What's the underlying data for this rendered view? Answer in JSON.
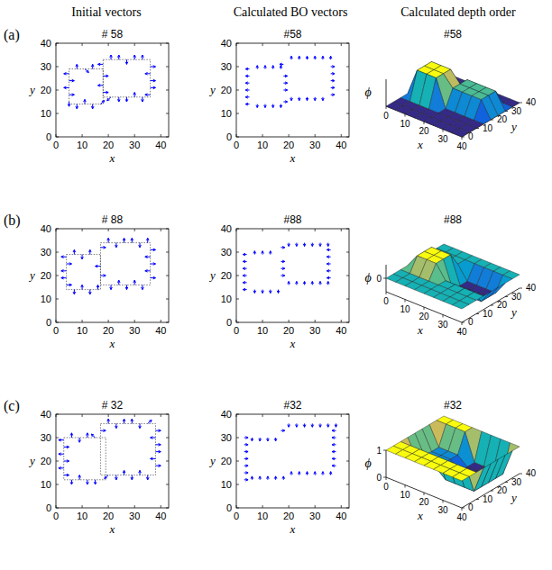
{
  "column_titles": [
    "Initial vectors",
    "Calculated BO vectors",
    "Calculated depth order"
  ],
  "row_labels": [
    "(a)",
    "(b)",
    "(c)"
  ],
  "chart_data": [
    {
      "type": "quiver",
      "title": "# 58",
      "color": "#0000ff",
      "x_label": "x",
      "y_label": "y",
      "xlim": [
        0,
        43
      ],
      "ylim": [
        0,
        40
      ],
      "xticks": [
        0,
        10,
        20,
        30,
        40
      ],
      "yticks": [
        0,
        10,
        20,
        30,
        40
      ],
      "rectangles": [
        [
          5,
          14,
          18,
          29
        ],
        [
          18,
          17,
          36,
          33
        ]
      ],
      "x": [
        5,
        5,
        5,
        5,
        5,
        8,
        11,
        14,
        17,
        8,
        11,
        14,
        18,
        21,
        24,
        27,
        30,
        33,
        36,
        36,
        36,
        36,
        36,
        33,
        30,
        27,
        24,
        21,
        18,
        18,
        18
      ],
      "y": [
        27,
        24,
        21,
        18,
        15,
        14,
        14,
        14,
        14,
        29,
        29,
        29,
        31,
        33,
        33,
        33,
        33,
        33,
        30,
        27,
        24,
        21,
        18,
        17,
        17,
        17,
        17,
        17,
        26,
        22,
        19
      ],
      "u": [
        -2,
        2,
        -2,
        2,
        0,
        0,
        0,
        0,
        1.5,
        0,
        1.5,
        0,
        -2,
        0,
        0,
        0,
        0,
        0,
        2,
        -2,
        2,
        2,
        -2,
        0,
        0,
        0,
        0,
        -1.5,
        2,
        -2,
        2
      ],
      "v": [
        0,
        0,
        0,
        0,
        -2,
        -2,
        2,
        -2,
        1.5,
        2,
        -1.5,
        2,
        0,
        2,
        2,
        -2,
        2,
        2,
        0,
        0,
        0,
        0,
        0,
        -2,
        2,
        -2,
        -2,
        -1.5,
        0,
        0,
        0
      ]
    },
    {
      "type": "quiver",
      "title": "#58",
      "color": "#0000ff",
      "x_label": "x",
      "y_label": "y",
      "xlim": [
        0,
        43
      ],
      "ylim": [
        0,
        40
      ],
      "xticks": [
        0,
        10,
        20,
        30,
        40
      ],
      "yticks": [
        0,
        10,
        20,
        30,
        40
      ],
      "x": [
        5,
        5,
        5,
        5,
        5,
        5,
        8,
        11,
        14,
        17,
        8,
        11,
        14,
        17,
        18,
        18,
        18,
        18,
        18,
        21,
        24,
        27,
        30,
        33,
        36,
        36,
        36,
        36,
        36,
        36,
        21,
        24,
        27,
        30,
        33
      ],
      "y": [
        14,
        17,
        20,
        23,
        26,
        29,
        29,
        29,
        29,
        29,
        14,
        14,
        14,
        14,
        15,
        20,
        23,
        26,
        31,
        33,
        33,
        33,
        33,
        33,
        33,
        30,
        27,
        24,
        21,
        18,
        17,
        17,
        17,
        17,
        17
      ],
      "u": [
        -1.5,
        -1.5,
        -1.5,
        -1.5,
        -1.5,
        -1.5,
        0,
        0,
        0,
        0,
        0,
        0,
        0,
        0,
        1.5,
        1.5,
        1.5,
        1.5,
        -1.5,
        0,
        0,
        0,
        0,
        0,
        0,
        1.5,
        1.5,
        1.5,
        1.5,
        1.5,
        0,
        0,
        0,
        0,
        0
      ],
      "v": [
        0,
        0,
        0,
        0,
        0,
        0,
        1.5,
        1.5,
        1.5,
        1.5,
        -1.5,
        -1.5,
        -1.5,
        -1.5,
        0,
        0,
        0,
        0,
        0,
        1.5,
        1.5,
        1.5,
        1.5,
        1.5,
        1.5,
        0,
        0,
        0,
        0,
        0,
        -1.5,
        -1.5,
        -1.5,
        -1.5,
        -1.5
      ]
    },
    {
      "type": "surface",
      "title": "#58",
      "x_label": "x",
      "y_label": "y",
      "z_label": "ϕ",
      "xlim": [
        0,
        40
      ],
      "ylim": [
        0,
        40
      ],
      "zlim": [
        0,
        1
      ],
      "xticks": [
        0,
        10,
        20,
        30,
        40
      ],
      "yticks": [
        0,
        10,
        20,
        30,
        40
      ],
      "zticks": [],
      "x": [
        0,
        5,
        10,
        15,
        20,
        25,
        30,
        35,
        40
      ],
      "y": [
        0,
        5,
        10,
        15,
        20,
        25,
        30,
        35,
        40
      ],
      "z": [
        [
          0,
          0,
          0,
          0,
          0,
          0,
          0,
          0,
          0
        ],
        [
          0,
          0,
          0,
          0,
          0,
          0,
          0,
          0,
          0
        ],
        [
          0,
          0,
          0,
          0,
          0,
          0,
          0,
          0,
          0
        ],
        [
          0,
          1,
          1,
          1,
          0,
          0,
          0,
          0,
          0
        ],
        [
          0,
          1,
          1,
          1,
          0.6,
          0.6,
          0.6,
          0.6,
          0
        ],
        [
          0,
          1,
          1,
          1,
          0.6,
          0.6,
          0.6,
          0.6,
          0
        ],
        [
          0,
          0,
          0,
          0,
          0.6,
          0.6,
          0.6,
          0.6,
          0
        ],
        [
          0,
          0,
          0,
          0,
          0,
          0,
          0,
          0,
          0
        ],
        [
          0,
          0,
          0,
          0,
          0,
          0,
          0,
          0,
          0
        ]
      ]
    },
    {
      "type": "quiver",
      "title": "# 88",
      "color": "#0000ff",
      "x_label": "x",
      "y_label": "y",
      "xlim": [
        0,
        43
      ],
      "ylim": [
        0,
        40
      ],
      "xticks": [
        0,
        10,
        20,
        30,
        40
      ],
      "yticks": [
        0,
        10,
        20,
        30,
        40
      ],
      "rectangles": [
        [
          4,
          14,
          17,
          29
        ],
        [
          17,
          16,
          36,
          34
        ]
      ],
      "x": [
        4,
        4,
        4,
        4,
        4,
        7,
        10,
        13,
        16,
        7,
        10,
        13,
        17,
        20,
        23,
        26,
        29,
        32,
        35,
        36,
        36,
        36,
        36,
        36,
        33,
        30,
        27,
        24,
        21,
        17,
        17
      ],
      "y": [
        28,
        25,
        22,
        19,
        16,
        14,
        14,
        14,
        14,
        29,
        29,
        29,
        32,
        34,
        34,
        34,
        34,
        34,
        34,
        31,
        28,
        25,
        22,
        19,
        16,
        16,
        16,
        16,
        16,
        24,
        20
      ],
      "u": [
        -2,
        2,
        -2,
        -2,
        2,
        0,
        0,
        0,
        0,
        0,
        0,
        0,
        2,
        0,
        0,
        0,
        0,
        0,
        0,
        2,
        -2,
        2,
        -2,
        2,
        0,
        0,
        0,
        0,
        0,
        -2,
        2
      ],
      "v": [
        0,
        0,
        0,
        0,
        0,
        -2,
        2,
        -2,
        2,
        2,
        -2,
        2,
        0,
        2,
        -2,
        2,
        2,
        -2,
        2,
        0,
        0,
        0,
        0,
        0,
        -2,
        2,
        -2,
        2,
        -2,
        0,
        0
      ]
    },
    {
      "type": "quiver",
      "title": "#88",
      "color": "#0000ff",
      "x_label": "x",
      "y_label": "y",
      "xlim": [
        0,
        43
      ],
      "ylim": [
        0,
        40
      ],
      "xticks": [
        0,
        10,
        20,
        30,
        40
      ],
      "yticks": [
        0,
        10,
        20,
        30,
        40
      ],
      "x": [
        4,
        4,
        4,
        4,
        4,
        4,
        7,
        10,
        13,
        7,
        10,
        13,
        16,
        17,
        17,
        17,
        17,
        20,
        23,
        26,
        29,
        32,
        35,
        36,
        36,
        36,
        36,
        36,
        20,
        23,
        26,
        29,
        32,
        35
      ],
      "y": [
        14,
        17,
        20,
        23,
        26,
        29,
        29,
        29,
        29,
        14,
        14,
        14,
        14,
        20,
        23,
        26,
        32,
        34,
        34,
        34,
        34,
        34,
        34,
        31,
        28,
        25,
        22,
        19,
        16,
        16,
        16,
        16,
        16,
        16
      ],
      "u": [
        -1.5,
        -1.5,
        -1.5,
        -1.5,
        -1.5,
        -1.5,
        0,
        0,
        0,
        0,
        0,
        0,
        0,
        1.5,
        1.5,
        1.5,
        1.5,
        0,
        0,
        0,
        0,
        0,
        0,
        -1.5,
        -1.5,
        -1.5,
        -1.5,
        -1.5,
        0,
        0,
        0,
        0,
        0,
        0
      ],
      "v": [
        0,
        0,
        0,
        0,
        0,
        0,
        1.5,
        1.5,
        1.5,
        -1.5,
        -1.5,
        -1.5,
        -1.5,
        0,
        0,
        0,
        0,
        -1.5,
        -1.5,
        -1.5,
        -1.5,
        -1.5,
        -1.5,
        0,
        0,
        0,
        0,
        0,
        1.5,
        1.5,
        1.5,
        1.5,
        1.5,
        1.5
      ]
    },
    {
      "type": "surface",
      "title": "#88",
      "x_label": "x",
      "y_label": "y",
      "z_label": "ϕ",
      "xlim": [
        0,
        40
      ],
      "ylim": [
        0,
        40
      ],
      "zlim": [
        -1,
        1
      ],
      "xticks": [
        0,
        10,
        20,
        30,
        40
      ],
      "yticks": [
        0,
        10,
        20,
        30,
        40
      ],
      "zticks": [
        0
      ],
      "x": [
        0,
        5,
        10,
        15,
        20,
        25,
        30,
        35,
        40
      ],
      "y": [
        0,
        5,
        10,
        15,
        20,
        25,
        30,
        35,
        40
      ],
      "z": [
        [
          0,
          0,
          0,
          0,
          0,
          0,
          0,
          0,
          0
        ],
        [
          0,
          0,
          0,
          0,
          0,
          0,
          0,
          0,
          0
        ],
        [
          0,
          0,
          0,
          0,
          0,
          0,
          0,
          0,
          0
        ],
        [
          0,
          1,
          1,
          1,
          0,
          0,
          0,
          0,
          0
        ],
        [
          0,
          1,
          1,
          1,
          -1,
          -1,
          -1,
          -1,
          0
        ],
        [
          0,
          1,
          1,
          1,
          -1,
          -1,
          -1,
          -1,
          0
        ],
        [
          0,
          0,
          0,
          0,
          -1,
          -1,
          -1,
          -1,
          0
        ],
        [
          0,
          0,
          0,
          0,
          0,
          0,
          0,
          0,
          0
        ],
        [
          0,
          0,
          0,
          0,
          0,
          0,
          0,
          0,
          0
        ]
      ]
    },
    {
      "type": "quiver",
      "title": "# 32",
      "color": "#0000ff",
      "x_label": "x",
      "y_label": "y",
      "xlim": [
        0,
        43
      ],
      "ylim": [
        0,
        40
      ],
      "xticks": [
        0,
        10,
        20,
        30,
        40
      ],
      "yticks": [
        0,
        10,
        20,
        30,
        40
      ],
      "rectangles": [
        [
          3,
          12,
          19,
          30
        ],
        [
          17,
          14,
          38,
          36
        ]
      ],
      "x": [
        3,
        3,
        3,
        3,
        3,
        3,
        6,
        9,
        12,
        15,
        6,
        9,
        12,
        15,
        17,
        20,
        23,
        26,
        29,
        32,
        35,
        38,
        38,
        38,
        38,
        38,
        38,
        35,
        32,
        29,
        26,
        23,
        20
      ],
      "y": [
        29,
        26,
        23,
        20,
        17,
        14,
        12,
        12,
        12,
        12,
        30,
        30,
        30,
        30,
        33,
        36,
        36,
        36,
        36,
        36,
        36,
        33,
        30,
        27,
        24,
        21,
        18,
        14,
        14,
        14,
        14,
        14,
        14
      ],
      "u": [
        -2,
        2,
        -2,
        2,
        -2,
        2,
        0,
        0,
        0,
        0,
        0,
        0,
        0,
        -1.5,
        2,
        0,
        0,
        0,
        0,
        0,
        1.5,
        2,
        -2,
        2,
        2,
        -2,
        2,
        0,
        0,
        0,
        0,
        0,
        -1.5
      ],
      "v": [
        0,
        0,
        0,
        0,
        0,
        0,
        -2,
        2,
        -2,
        -2,
        2,
        -2,
        2,
        1.5,
        0,
        2,
        -2,
        2,
        2,
        -2,
        1.5,
        0,
        0,
        0,
        0,
        0,
        0,
        -2,
        2,
        -2,
        2,
        -2,
        -1.5
      ]
    },
    {
      "type": "quiver",
      "title": "#32",
      "color": "#0000ff",
      "x_label": "x",
      "y_label": "y",
      "xlim": [
        0,
        43
      ],
      "ylim": [
        0,
        40
      ],
      "xticks": [
        0,
        10,
        20,
        30,
        40
      ],
      "yticks": [
        0,
        10,
        20,
        30,
        40
      ],
      "x": [
        3,
        3,
        3,
        3,
        3,
        3,
        3,
        6,
        9,
        12,
        15,
        6,
        9,
        12,
        15,
        18,
        17,
        20,
        23,
        26,
        29,
        32,
        35,
        38,
        38,
        38,
        38,
        38,
        38,
        38,
        21,
        24,
        27,
        30,
        33,
        36
      ],
      "y": [
        12,
        15,
        18,
        21,
        24,
        27,
        30,
        30,
        30,
        30,
        30,
        12,
        12,
        12,
        12,
        12,
        33,
        36,
        36,
        36,
        36,
        36,
        36,
        36,
        33,
        30,
        27,
        24,
        21,
        18,
        14,
        14,
        14,
        14,
        14,
        14
      ],
      "u": [
        1.5,
        1.5,
        1.5,
        1.5,
        1.5,
        1.5,
        1.5,
        0,
        0,
        0,
        0,
        0,
        0,
        0,
        0,
        0,
        1.5,
        0,
        0,
        0,
        0,
        0,
        0,
        0,
        -1.5,
        -1.5,
        -1.5,
        -1.5,
        -1.5,
        -1.5,
        0,
        0,
        0,
        0,
        0,
        0
      ],
      "v": [
        0,
        0,
        0,
        0,
        0,
        0,
        0,
        -1.5,
        -1.5,
        -1.5,
        -1.5,
        1.5,
        1.5,
        1.5,
        1.5,
        1.5,
        0,
        -1.5,
        -1.5,
        -1.5,
        -1.5,
        -1.5,
        -1.5,
        -1.5,
        0,
        0,
        0,
        0,
        0,
        0,
        1.5,
        1.5,
        1.5,
        1.5,
        1.5,
        1.5
      ]
    },
    {
      "type": "surface",
      "title": "#32",
      "x_label": "x",
      "y_label": "y",
      "z_label": "ϕ",
      "xlim": [
        0,
        40
      ],
      "ylim": [
        0,
        40
      ],
      "zlim": [
        0,
        1
      ],
      "xticks": [
        0,
        10,
        20,
        30,
        40
      ],
      "yticks": [
        0,
        10,
        20,
        30,
        40
      ],
      "zticks": [
        0,
        1
      ],
      "x": [
        0,
        5,
        10,
        15,
        20,
        25,
        30,
        35,
        40
      ],
      "y": [
        0,
        5,
        10,
        15,
        20,
        25,
        30,
        35,
        40
      ],
      "z": [
        [
          1,
          1,
          1,
          1,
          1,
          1,
          1,
          1,
          1
        ],
        [
          1,
          1,
          1,
          1,
          1,
          1,
          1,
          1,
          1
        ],
        [
          1,
          1,
          1,
          1,
          1,
          1,
          1,
          1,
          1
        ],
        [
          1,
          0.3,
          0.3,
          0.3,
          0,
          0,
          0,
          0,
          1
        ],
        [
          1,
          0.3,
          0.3,
          0.3,
          0,
          0,
          0,
          0,
          1
        ],
        [
          1,
          0.3,
          0.3,
          0.3,
          0,
          0,
          0,
          0,
          1
        ],
        [
          1,
          0.3,
          0.3,
          0.3,
          0,
          0,
          0,
          0,
          1
        ],
        [
          1,
          1,
          1,
          1,
          0,
          0,
          0,
          0,
          1
        ],
        [
          1,
          1,
          1,
          1,
          1,
          1,
          1,
          1,
          1
        ]
      ]
    }
  ]
}
